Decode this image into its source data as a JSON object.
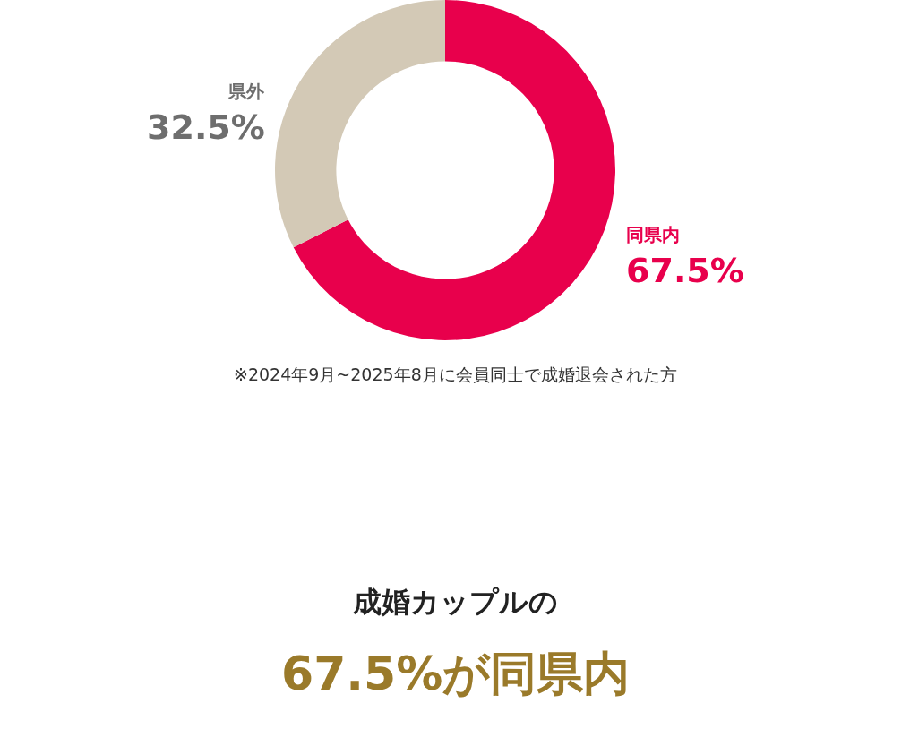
{
  "chart_data": {
    "type": "donut",
    "categories": [
      "同県内",
      "県外"
    ],
    "values": [
      67.5,
      32.5
    ],
    "colors": [
      "#e8004c",
      "#d3c9b6"
    ],
    "value_labels": [
      "67.5%",
      "32.5%"
    ],
    "legend": false,
    "annotations": [
      "※2024年9月~2025年8月に会員同士で成婚退会された方",
      "成婚カップルの",
      "67.5%が同県内"
    ]
  }
}
